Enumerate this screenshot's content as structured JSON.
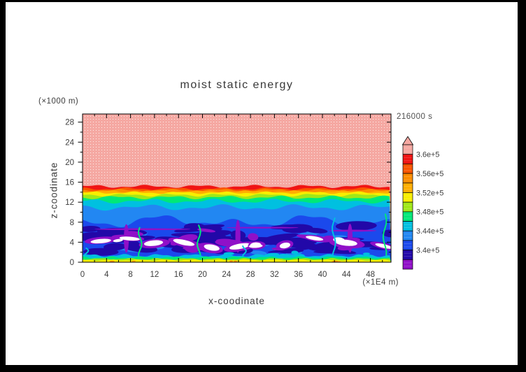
{
  "window": {
    "background": "#000000",
    "canvas_background": "#ffffff"
  },
  "title": "moist static energy",
  "time_label": "216000 s",
  "axes": {
    "x": {
      "label": "x-coodinate",
      "unit": "(×1E4 m)"
    },
    "y": {
      "label": "z-coodinate",
      "unit": "(×1000 m)"
    }
  },
  "chart_data": {
    "type": "heatmap",
    "subtype": "filled-contour-shading",
    "title": "moist static energy",
    "time_stamp": "216000 s",
    "xlabel": "x-coodinate",
    "x_unit": "(×1E4 m)",
    "x_ticks": [
      0,
      4,
      8,
      12,
      16,
      20,
      24,
      28,
      32,
      36,
      40,
      44,
      48
    ],
    "xlim": [
      0,
      51.43
    ],
    "ylabel": "z-coodinate",
    "y_unit": "(×1000 m)",
    "y_ticks": [
      0,
      4,
      8,
      12,
      16,
      20,
      24,
      28
    ],
    "ylim": [
      0,
      29.63
    ],
    "grid": false,
    "legend_position": "right-colorbar",
    "colorbar": {
      "labels_top_to_bottom": [
        "3.6e+5",
        "3.56e+5",
        "3.52e+5",
        "3.48e+5",
        "3.44e+5",
        "3.4e+5"
      ],
      "bin_edges": [
        336000,
        338000,
        340000,
        342000,
        344000,
        346000,
        348000,
        350000,
        352000,
        354000,
        356000,
        358000,
        360000
      ],
      "bin_colors_top_to_bottom": [
        "#f5a8a2",
        "#f01414",
        "#fa5500",
        "#fd8d00",
        "#ffae00",
        "#f8ee00",
        "#a0e818",
        "#00e878",
        "#00c0e0",
        "#2287f2",
        "#1b49ec",
        "#2208a8",
        "#9010c8"
      ],
      "open_top_arrow": true,
      "above_max_color": "#f5a8a2",
      "below_min_color": "#ffffff",
      "contour_interval": 2000
    },
    "field_summary": {
      "upper_region": "uniform > 3.6e+5 (pink) from z ~15.2 to top (z ~29.6)",
      "transition_bands": "thin quasi-horizontal bands 3.42e5-3.60e5 between z ~8 and z ~15.2",
      "lower_region": "turbulent boundary layer z 0-8: 3.36e5-3.42e5 patches (navy/purple) with white holes < 3.36e5",
      "surface_strip": "thin layers up to ~3.52e5 (yellow/green/cyan) at z 0-1.4"
    },
    "render": {
      "seed": 1337,
      "palette": {
        "pink": "#f5a8a2",
        "red": "#f01414",
        "orangered": "#fa5500",
        "orange": "#fd8d00",
        "lightorange": "#ffae00",
        "yellow": "#f8ee00",
        "chartreuse": "#a0e818",
        "springgreen": "#00e878",
        "cyan": "#00c0e0",
        "dodger": "#2287f2",
        "blue": "#1b49ec",
        "navy": "#2208a8",
        "purple": "#9010c8",
        "white": "#ffffff"
      },
      "band_layers": [
        {
          "color": "red",
          "z_top": 15.15,
          "waves": [
            [
              0.22,
              0.7,
              0.5
            ],
            [
              0.12,
              1.7,
              2.9
            ]
          ]
        },
        {
          "color": "orangered",
          "z_top": 14.68,
          "waves": [
            [
              0.18,
              0.8,
              1.9
            ],
            [
              0.1,
              1.9,
              0.6
            ]
          ]
        },
        {
          "color": "orange",
          "z_top": 14.4,
          "waves": [
            [
              0.16,
              0.75,
              3.2
            ],
            [
              0.1,
              2.1,
              1.2
            ]
          ]
        },
        {
          "color": "lightorange",
          "z_top": 14.14,
          "waves": [
            [
              0.15,
              0.8,
              4.6
            ],
            [
              0.09,
              2.3,
              2.2
            ]
          ]
        },
        {
          "color": "yellow",
          "z_top": 13.9,
          "waves": [
            [
              0.16,
              0.85,
              0.4
            ],
            [
              0.1,
              2.0,
              3.4
            ]
          ]
        },
        {
          "color": "chartreuse",
          "z_top": 13.42,
          "waves": [
            [
              0.2,
              0.8,
              2.2
            ],
            [
              0.12,
              1.6,
              5.1
            ]
          ]
        },
        {
          "color": "springgreen",
          "z_top": 12.95,
          "waves": [
            [
              0.24,
              0.7,
              3.9
            ],
            [
              0.14,
              1.5,
              1.8
            ]
          ]
        },
        {
          "color": "cyan",
          "z_top": 12.2,
          "waves": [
            [
              0.3,
              0.6,
              1.2
            ],
            [
              0.2,
              1.3,
              4.4
            ]
          ]
        },
        {
          "color": "dodger",
          "z_top": 10.95,
          "waves": [
            [
              0.4,
              0.5,
              2.6
            ],
            [
              0.25,
              1.1,
              0.8
            ]
          ]
        },
        {
          "color": "blue",
          "z_top": 8.15,
          "waves": [
            [
              0.7,
              0.5,
              1.6
            ],
            [
              0.5,
              0.26,
              4.2
            ],
            [
              0.3,
              1.2,
              2.8
            ]
          ]
        }
      ],
      "blobs": {
        "dodger": {
          "n": 16,
          "z": [
            1.6,
            7.0
          ],
          "rx": [
            1.0,
            3.2
          ],
          "ry": [
            0.3,
            0.8
          ]
        },
        "navy": {
          "n": 46,
          "z": [
            1.9,
            7.3
          ],
          "rx": [
            1.0,
            5.0
          ],
          "ry": [
            0.3,
            1.0
          ]
        },
        "purple": {
          "n": 16,
          "z": [
            2.4,
            6.4
          ],
          "rx": [
            0.7,
            2.8
          ],
          "ry": [
            0.25,
            0.8
          ]
        },
        "cyan_low": {
          "n": 8,
          "z": [
            0.9,
            2.0
          ],
          "rx": [
            0.5,
            1.6
          ],
          "ry": [
            0.2,
            0.5
          ]
        },
        "white_pairs": {
          "n": 11,
          "z": [
            2.8,
            5.2
          ],
          "rx": [
            1.4,
            3.0
          ],
          "ry": [
            0.55,
            1.0
          ],
          "white_scale": 0.62
        },
        "white_extra": {
          "n": 4,
          "z": [
            2.8,
            5.0
          ],
          "rx": [
            0.6,
            1.2
          ],
          "ry": [
            0.3,
            0.5
          ]
        }
      },
      "purple_columns": [
        {
          "x": 7.3,
          "z_top": 7.6
        },
        {
          "x": 25.9,
          "z_top": 8.5
        },
        {
          "x": 44.6,
          "z_top": 7.7
        }
      ],
      "purple_streaks": [
        {
          "x": 10,
          "z": 6.6,
          "rx": 8,
          "ry": 0.18
        },
        {
          "x": 30,
          "z": 6.9,
          "rx": 6,
          "ry": 0.15
        },
        {
          "x": 45,
          "z": 6.3,
          "rx": 4,
          "ry": 0.2
        }
      ],
      "plumes": [
        {
          "x": 0.7,
          "z_top": 2.8,
          "color": "cyan"
        },
        {
          "x": 9.6,
          "z_top": 6.9,
          "color": "springgreen"
        },
        {
          "x": 19.4,
          "z_top": 7.4,
          "color": "springgreen"
        },
        {
          "x": 27.0,
          "z_top": 3.2,
          "color": "cyan"
        },
        {
          "x": 41.9,
          "z_top": 8.8,
          "color": "cyan"
        },
        {
          "x": 50.4,
          "z_top": 9.6,
          "color": "springgreen"
        }
      ],
      "surface_strips": [
        {
          "color": "cyan",
          "z_top": 1.35,
          "waves": [
            [
              0.22,
              1.1,
              0.3
            ],
            [
              0.1,
              2.6,
              1.9
            ]
          ]
        },
        {
          "color": "springgreen",
          "z_top": 0.95,
          "waves": [
            [
              0.16,
              1.2,
              2.1
            ],
            [
              0.08,
              2.8,
              0.7
            ]
          ]
        },
        {
          "color": "chartreuse",
          "z_top": 0.66,
          "waves": [
            [
              0.13,
              1.3,
              4.0
            ],
            [
              0.06,
              3.0,
              2.5
            ]
          ]
        },
        {
          "color": "yellow",
          "z_top": 0.42,
          "waves": [
            [
              0.1,
              1.4,
              1.1
            ],
            [
              0.05,
              3.2,
              3.8
            ]
          ]
        }
      ],
      "orange_dots": {
        "n": 7,
        "z": [
          0.06,
          0.22
        ],
        "rx": [
          0.25,
          0.6
        ],
        "ry": [
          0.08,
          0.16
        ]
      }
    }
  }
}
